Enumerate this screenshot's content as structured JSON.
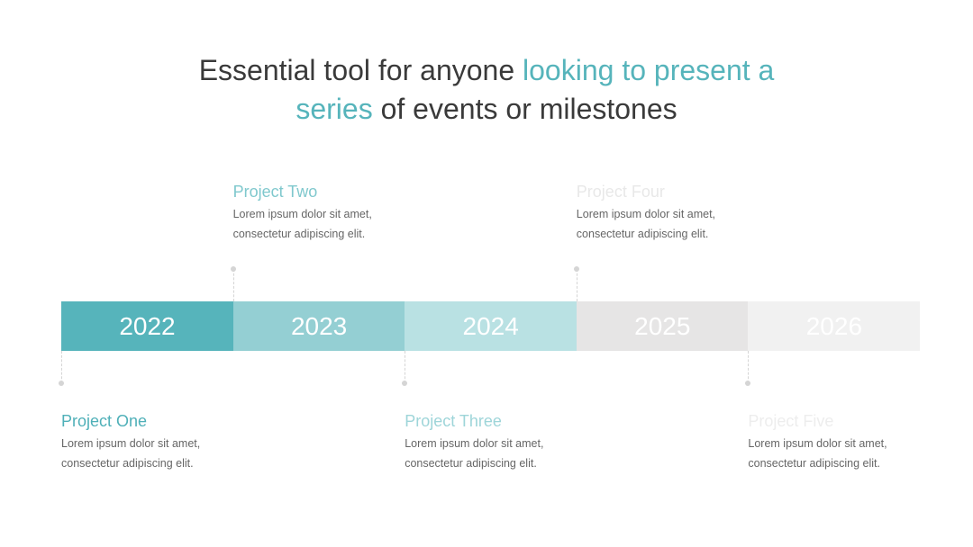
{
  "title": [
    "Essential tool for anyone",
    "looking to present a",
    "series",
    "of events or milestones"
  ],
  "years": [
    {
      "label": "2022",
      "color": "#56b4bb"
    },
    {
      "label": "2023",
      "color": "#94cfd3"
    },
    {
      "label": "2024",
      "color": "#b9e1e3"
    },
    {
      "label": "2025",
      "color": "#e6e5e5"
    },
    {
      "label": "2026",
      "color": "#f1f1f1"
    }
  ],
  "milestones": [
    {
      "title": "Project One",
      "color": "#4fb0b8",
      "lines": [
        "Lorem ipsum dolor sit amet,",
        "consectetur adipiscing elit."
      ]
    },
    {
      "title": "Project Two",
      "color": "#7fc8cd",
      "lines": [
        "Lorem ipsum dolor sit amet,",
        "consectetur adipiscing elit."
      ]
    },
    {
      "title": "Project Three",
      "color": "#9ed5d9",
      "lines": [
        "Lorem ipsum dolor sit amet,",
        "consectetur adipiscing elit."
      ]
    },
    {
      "title": "Project Four",
      "color": "#e8e8e8",
      "lines": [
        "Lorem ipsum dolor sit amet,",
        "consectetur adipiscing elit."
      ]
    },
    {
      "title": "Project Five",
      "color": "#ededed",
      "lines": [
        "Lorem ipsum dolor sit amet,",
        "consectetur adipiscing elit."
      ]
    }
  ]
}
